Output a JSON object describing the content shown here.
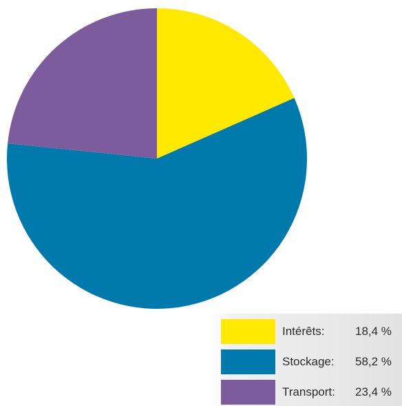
{
  "chart_data": {
    "type": "pie",
    "title": "",
    "slices": [
      {
        "name": "Intérêts",
        "label": "Intérêts:",
        "value": 18.4,
        "value_label": "18,4 %",
        "color": "#ffe900"
      },
      {
        "name": "Stockage",
        "label": "Stockage:",
        "value": 58.2,
        "value_label": "58,2 %",
        "color": "#007aac"
      },
      {
        "name": "Transport",
        "label": "Transport:",
        "value": 23.4,
        "value_label": "23,4 %",
        "color": "#7c5c9c"
      }
    ],
    "start_angle": "12 o'clock",
    "direction": "clockwise",
    "legend_position": "bottom-right"
  }
}
